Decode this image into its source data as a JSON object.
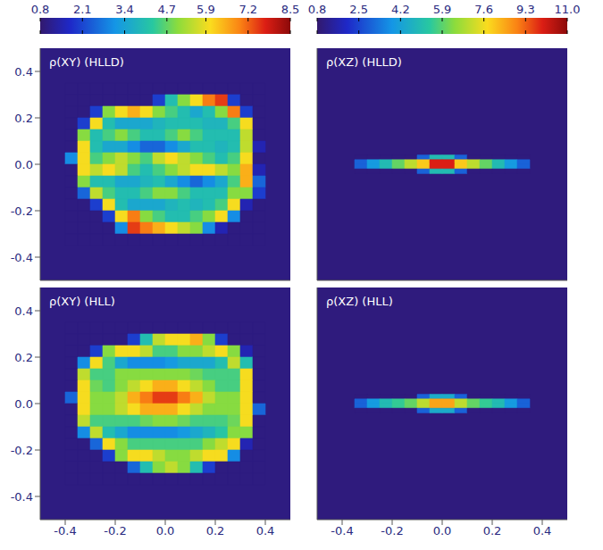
{
  "chart_data": [
    {
      "type": "heatmap",
      "title": "ρ(XY) (HLLD)",
      "xlim": [
        -0.5,
        0.5
      ],
      "ylim": [
        -0.5,
        0.5
      ],
      "xticks": [
        -0.4,
        -0.2,
        {
          "value": 0,
          "label": "0.0"
        },
        0.2,
        0.4
      ],
      "yticks": [
        -0.4,
        -0.2,
        {
          "value": 0,
          "label": "0.0"
        },
        0.2,
        0.4
      ],
      "tick_labels": "y",
      "colorbar": {
        "range": [
          0.8,
          8.5
        ],
        "ticks": [
          0.8,
          2.1,
          3.4,
          4.7,
          5.9,
          7.2,
          8.5
        ]
      },
      "background": 1.0,
      "x_edges": [
        -0.4,
        -0.35,
        -0.3,
        -0.25,
        -0.2,
        -0.15,
        -0.1,
        -0.05,
        0,
        0.05,
        0.1,
        0.15,
        0.2,
        0.25,
        0.3,
        0.35,
        0.4
      ],
      "y_edges": [
        0.35,
        0.3,
        0.25,
        0.2,
        0.15,
        0.1,
        0.05,
        0,
        -0.05,
        -0.1,
        -0.15,
        -0.2,
        -0.25,
        -0.3,
        -0.35
      ],
      "cells": [
        [
          1,
          1,
          1,
          1,
          1,
          1,
          1,
          1,
          1,
          1,
          1,
          1,
          1,
          1,
          1,
          1
        ],
        [
          1,
          1,
          1,
          1,
          1,
          1,
          1,
          2,
          4,
          5,
          6,
          7,
          7.5,
          2,
          1,
          1
        ],
        [
          1,
          1,
          2,
          5,
          6,
          6.5,
          6,
          5,
          4.5,
          4,
          3.5,
          4,
          5,
          7,
          2,
          1
        ],
        [
          1,
          2,
          6,
          4,
          3.5,
          3.5,
          3.5,
          3.8,
          4,
          4,
          4,
          3.8,
          3.8,
          4.5,
          6,
          1
        ],
        [
          1,
          5,
          4,
          4.5,
          5,
          4.5,
          4,
          4,
          4.5,
          5,
          4.5,
          4,
          4,
          4,
          5.5,
          1
        ],
        [
          1,
          6,
          4,
          3.5,
          3.5,
          3,
          2.5,
          2.5,
          3,
          3.5,
          4,
          4,
          3.8,
          4,
          5.5,
          1.5
        ],
        [
          3,
          6,
          4.5,
          5,
          5.5,
          5,
          4.5,
          5.5,
          6,
          5.5,
          5,
          4.5,
          4,
          4.5,
          6,
          1
        ],
        [
          1,
          6,
          5.5,
          6,
          5.5,
          4.5,
          4,
          4.5,
          5,
          5.5,
          6,
          6,
          5.5,
          5,
          6.5,
          1.5
        ],
        [
          1,
          5,
          4,
          4,
          3.5,
          3.5,
          3.8,
          4,
          3.5,
          3,
          2.5,
          3,
          3.5,
          4.5,
          6.5,
          2.5
        ],
        [
          1,
          2.5,
          5.5,
          4.5,
          4,
          4,
          4.5,
          5,
          5,
          4.5,
          4,
          4,
          4,
          5,
          5,
          2
        ],
        [
          1,
          1,
          2,
          6,
          4,
          3.5,
          3.5,
          3.5,
          3.8,
          4,
          3.8,
          4,
          4.5,
          6,
          1.5,
          1
        ],
        [
          1,
          1,
          1,
          2,
          6,
          7,
          5,
          4.5,
          4,
          4,
          4.5,
          5,
          6,
          3,
          1,
          1
        ],
        [
          1,
          1,
          1,
          1,
          3,
          7.5,
          7,
          6.5,
          6,
          5.5,
          5,
          3,
          1.5,
          1,
          1,
          1
        ],
        [
          1,
          1,
          1,
          1,
          1,
          1,
          1,
          1,
          1,
          1,
          1,
          1,
          1,
          1,
          1,
          1
        ]
      ]
    },
    {
      "type": "heatmap",
      "title": "ρ(XZ) (HLLD)",
      "xlim": [
        -0.5,
        0.5
      ],
      "ylim": [
        -0.5,
        0.5
      ],
      "xticks": [
        -0.4,
        -0.2,
        {
          "value": 0,
          "label": "0.0"
        },
        0.2,
        0.4
      ],
      "yticks": [
        -0.4,
        -0.2,
        {
          "value": 0,
          "label": "0.0"
        },
        0.2,
        0.4
      ],
      "tick_labels": false,
      "colorbar": {
        "range": [
          0.8,
          11
        ],
        "ticks": [
          0.8,
          2.5,
          4.2,
          5.9,
          7.6,
          9.3,
          {
            "value": 11,
            "label": "11.0"
          }
        ]
      },
      "background": 1.0,
      "x_edges": [
        -0.35,
        -0.3,
        -0.25,
        -0.2,
        -0.15,
        -0.1,
        -0.05,
        0,
        0.05,
        0.1,
        0.15,
        0.2,
        0.25,
        0.3,
        0.35
      ],
      "y_edges": [
        0.04,
        0.02,
        0,
        -0.02,
        -0.04
      ],
      "cells": [
        [
          1,
          1,
          1,
          1,
          1,
          3,
          5,
          5,
          3,
          1,
          1,
          1,
          1,
          1
        ],
        [
          3,
          4,
          5,
          6,
          7,
          8,
          10,
          10,
          8,
          7,
          6,
          5,
          4,
          3
        ],
        [
          3,
          4,
          5,
          6,
          7,
          8,
          10,
          10,
          8,
          7,
          6,
          5,
          4,
          3
        ],
        [
          1,
          1,
          1,
          1,
          1,
          3,
          5,
          5,
          3,
          1,
          1,
          1,
          1,
          1
        ]
      ]
    },
    {
      "type": "heatmap",
      "title": "ρ(XY) (HLL)",
      "xlim": [
        -0.5,
        0.5
      ],
      "ylim": [
        -0.5,
        0.5
      ],
      "xticks": [
        -0.4,
        -0.2,
        {
          "value": 0,
          "label": "0.0"
        },
        0.2,
        0.4
      ],
      "yticks": [
        -0.4,
        -0.2,
        {
          "value": 0,
          "label": "0.0"
        },
        0.2,
        0.4
      ],
      "tick_labels": true,
      "colorbar": {
        "range": [
          0.8,
          8.5
        ],
        "ticks": [
          0.8,
          2.1,
          3.4,
          4.7,
          5.9,
          7.2,
          8.5
        ]
      },
      "background": 1.0,
      "x_edges": [
        -0.4,
        -0.35,
        -0.3,
        -0.25,
        -0.2,
        -0.15,
        -0.1,
        -0.05,
        0,
        0.05,
        0.1,
        0.15,
        0.2,
        0.25,
        0.3,
        0.35,
        0.4
      ],
      "y_edges": [
        0.35,
        0.3,
        0.25,
        0.2,
        0.15,
        0.1,
        0.05,
        0,
        -0.05,
        -0.1,
        -0.15,
        -0.2,
        -0.25,
        -0.3,
        -0.35
      ],
      "cells": [
        [
          1,
          1,
          1,
          1,
          1,
          1,
          1,
          1,
          1,
          1,
          1,
          1,
          1,
          1,
          1,
          1
        ],
        [
          1,
          1,
          1,
          1,
          1,
          2,
          4,
          5.5,
          6,
          6,
          6.5,
          5,
          2,
          1,
          1,
          1
        ],
        [
          1,
          1,
          2,
          5,
          6,
          6,
          5.5,
          4.5,
          4.5,
          5,
          5,
          5.5,
          6,
          5,
          1.5,
          1
        ],
        [
          1,
          3,
          6,
          4.5,
          3.5,
          3,
          3,
          3,
          3.2,
          3.5,
          3.5,
          3.5,
          4,
          5.5,
          4,
          1
        ],
        [
          1,
          5.5,
          4.5,
          4.5,
          5,
          5,
          5,
          5,
          5,
          5,
          4.8,
          4.5,
          4.5,
          4.5,
          6,
          1
        ],
        [
          1,
          6,
          4.8,
          4.5,
          5,
          5.5,
          6,
          6.5,
          6.5,
          6,
          5.5,
          5,
          4.5,
          4.5,
          6,
          1
        ],
        [
          2.5,
          6,
          5,
          5,
          5.5,
          6.5,
          7,
          7.5,
          7.5,
          7,
          6.5,
          5.5,
          5,
          5,
          6,
          1
        ],
        [
          1,
          6,
          5,
          5,
          5.5,
          6,
          6.5,
          6.5,
          6.5,
          6,
          5.5,
          5,
          5,
          5,
          6,
          2.5
        ],
        [
          1,
          5.5,
          4.5,
          4.5,
          4.5,
          4.5,
          4.8,
          5,
          5,
          4.8,
          4.5,
          4.5,
          4.5,
          4.8,
          6,
          1
        ],
        [
          1,
          3,
          5.5,
          4,
          3.5,
          3,
          3,
          3,
          3,
          3.2,
          3.5,
          3.8,
          4.2,
          5,
          5,
          1
        ],
        [
          1,
          1,
          2.5,
          6,
          5,
          4.5,
          4.5,
          4.5,
          4.5,
          4.5,
          4.5,
          5,
          5.5,
          6,
          1.5,
          1
        ],
        [
          1,
          1,
          1,
          2,
          5,
          6,
          6,
          5.5,
          5,
          5,
          5.5,
          6,
          6,
          3,
          1,
          1
        ],
        [
          1,
          1,
          1,
          1,
          1,
          2.5,
          4,
          5,
          5.5,
          5,
          4,
          2,
          1,
          1,
          1,
          1
        ],
        [
          1,
          1,
          1,
          1,
          1,
          1,
          1,
          1,
          1,
          1,
          1,
          1,
          1,
          1,
          1,
          1
        ]
      ]
    },
    {
      "type": "heatmap",
      "title": "ρ(XZ) (HLL)",
      "xlim": [
        -0.5,
        0.5
      ],
      "ylim": [
        -0.5,
        0.5
      ],
      "xticks": [
        -0.4,
        -0.2,
        {
          "value": 0,
          "label": "0.0"
        },
        0.2,
        0.4
      ],
      "yticks": [
        -0.4,
        -0.2,
        {
          "value": 0,
          "label": "0.0"
        },
        0.2,
        0.4
      ],
      "tick_labels": "x",
      "colorbar": {
        "range": [
          0.8,
          11
        ],
        "ticks": [
          0.8,
          2.5,
          4.2,
          5.9,
          7.6,
          9.3,
          {
            "value": 11,
            "label": "11.0"
          }
        ]
      },
      "background": 1.0,
      "x_edges": [
        -0.35,
        -0.3,
        -0.25,
        -0.2,
        -0.15,
        -0.1,
        -0.05,
        0,
        0.05,
        0.1,
        0.15,
        0.2,
        0.25,
        0.3,
        0.35
      ],
      "y_edges": [
        0.04,
        0.02,
        0,
        -0.02,
        -0.04
      ],
      "cells": [
        [
          1,
          1,
          1,
          1,
          1,
          3,
          4.5,
          4.5,
          3,
          1,
          1,
          1,
          1,
          1
        ],
        [
          3,
          4,
          5,
          5.5,
          6,
          7,
          8.5,
          8.5,
          7,
          6,
          5.5,
          5,
          4,
          3
        ],
        [
          3,
          4,
          5,
          5.5,
          6,
          7,
          8.5,
          8.5,
          7,
          6,
          5.5,
          5,
          4,
          3
        ],
        [
          1,
          1,
          1,
          1,
          1,
          3,
          4.5,
          4.5,
          3,
          1,
          1,
          1,
          1,
          1
        ]
      ]
    }
  ]
}
